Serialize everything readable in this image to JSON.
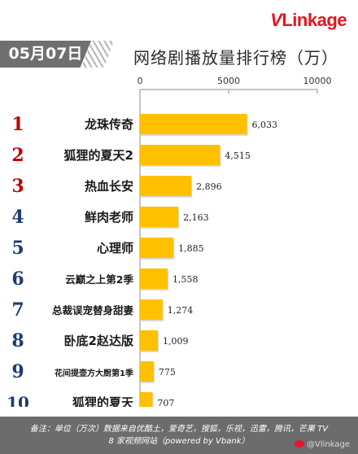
{
  "brand": {
    "logo_v": "V",
    "logo_rest": "Linkage"
  },
  "header": {
    "date": "05月07日",
    "title": "网络剧播放量排行榜（万）"
  },
  "chart_data": {
    "type": "bar",
    "orientation": "horizontal",
    "title": "网络剧播放量排行榜（万）",
    "ranks": [
      "1",
      "2",
      "3",
      "4",
      "5",
      "6",
      "7",
      "8",
      "9",
      "10"
    ],
    "categories": [
      "龙珠传奇",
      "狐狸的夏天2",
      "热血长安",
      "鲜肉老师",
      "心理师",
      "云巅之上第2季",
      "总裁误宠替身甜妻",
      "卧底2赵达版",
      "花间提壶方大厨第1季",
      "狐狸的夏天"
    ],
    "values": [
      6033,
      4515,
      2896,
      2163,
      1885,
      1558,
      1274,
      1009,
      775,
      707
    ],
    "value_labels": [
      "6,033",
      "4,515",
      "2,896",
      "2,163",
      "1,885",
      "1,558",
      "1,274",
      "1,009",
      "775",
      "707"
    ],
    "xlim": [
      0,
      10000
    ],
    "x_ticks": [
      "0",
      "5000",
      "10000"
    ],
    "grid": false,
    "colors": {
      "bar": "#ffc000",
      "rank_red": "#c00000",
      "rank_blue": "#1f3c72",
      "axis": "#8c8c8c"
    }
  },
  "footer": {
    "line1": "备注：单位（万次）数据来自优酷土，爱奇艺，搜狐，乐视，迅雷，腾讯，芒果 TV",
    "line2": "8 家视频网站（powered by Vbank）"
  },
  "watermark": "@Vlinkage"
}
